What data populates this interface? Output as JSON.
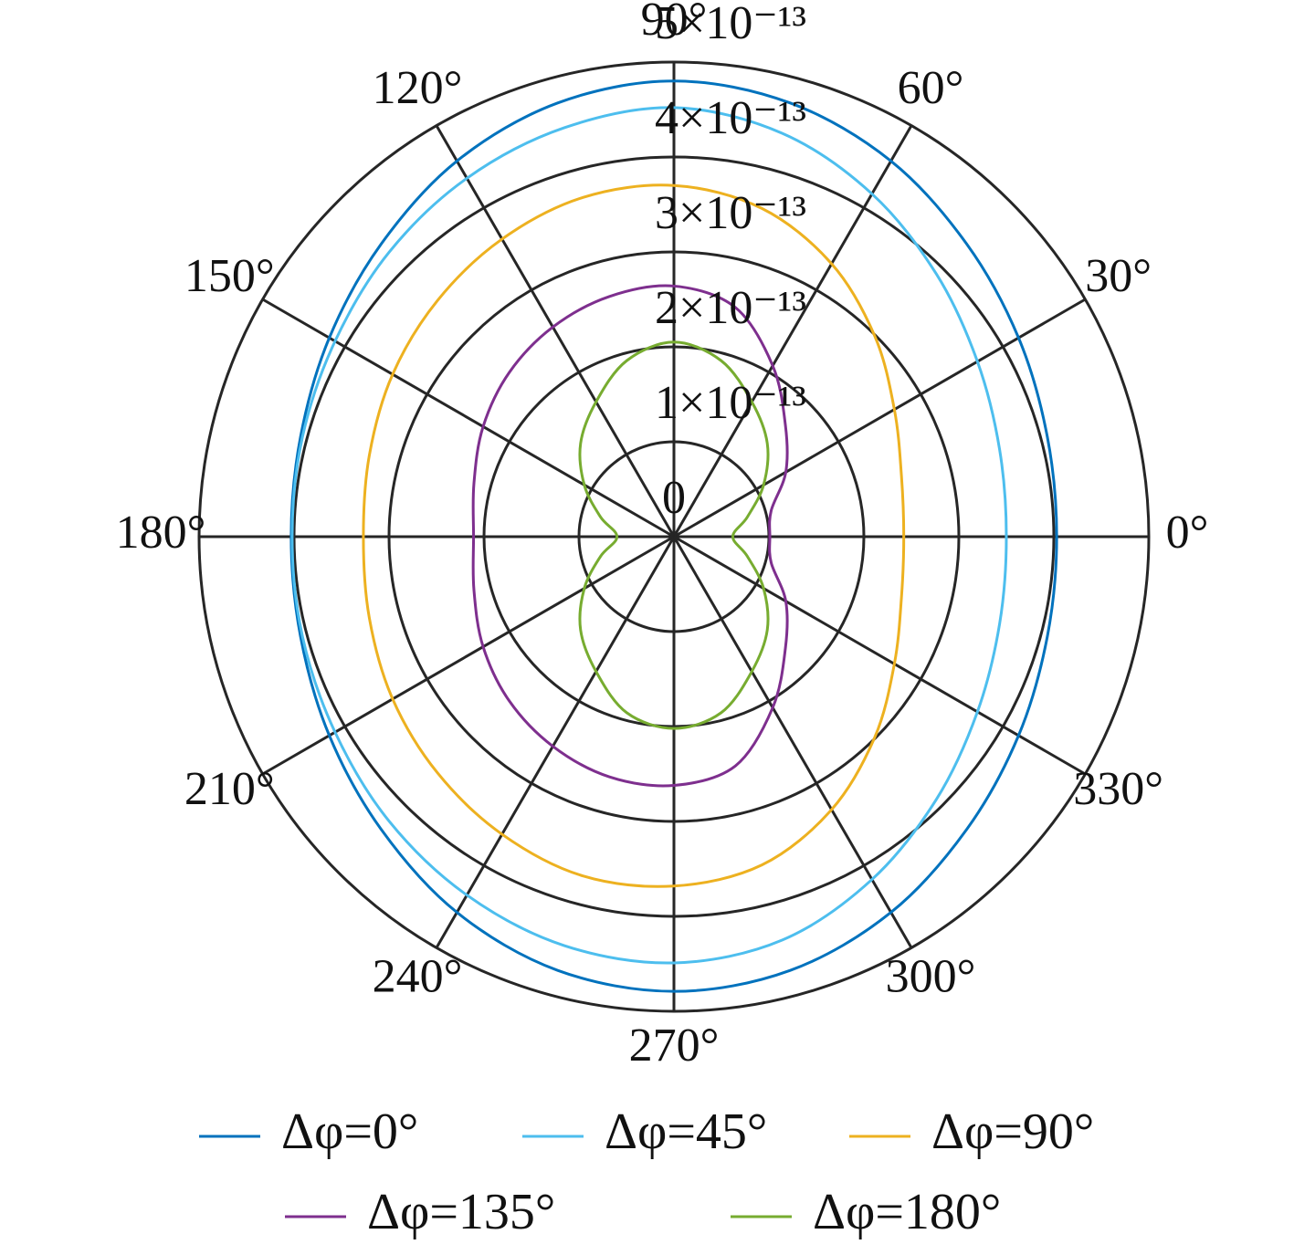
{
  "chart_data": {
    "type": "polar",
    "theta": [
      0,
      15,
      30,
      45,
      60,
      75,
      90,
      105,
      120,
      135,
      150,
      165,
      180,
      195,
      210,
      225,
      240,
      255,
      270,
      285,
      300,
      315,
      330,
      345
    ],
    "rlim": [
      0,
      5e-13
    ],
    "rticks": [
      0,
      {
        "value": 1e-13,
        "label": "1×10⁻¹³"
      },
      {
        "value": 2e-13,
        "label": "2×10⁻¹³"
      },
      {
        "value": 3e-13,
        "label": "3×10⁻¹³"
      },
      {
        "value": 4e-13,
        "label": "4×10⁻¹³"
      },
      {
        "value": 5e-13,
        "label": "5×10⁻¹³"
      }
    ],
    "thetaticks": [
      {
        "value": 0,
        "label": "0°"
      },
      {
        "value": 30,
        "label": "30°"
      },
      {
        "value": 60,
        "label": "60°"
      },
      {
        "value": 90,
        "label": "90°"
      },
      {
        "value": 120,
        "label": "120°"
      },
      {
        "value": 150,
        "label": "150°"
      },
      {
        "value": 180,
        "label": "180°"
      },
      {
        "value": 210,
        "label": "210°"
      },
      {
        "value": 240,
        "label": "240°"
      },
      {
        "value": 270,
        "label": "270°"
      },
      {
        "value": 300,
        "label": "300°"
      },
      {
        "value": 330,
        "label": "330°"
      }
    ],
    "grid": true,
    "legend": "bottom",
    "series": [
      {
        "name": "Δφ=0°",
        "color": "#0072BD",
        "values": [
          4.03e-13,
          4.07e-13,
          4.19e-13,
          4.36e-13,
          4.57e-13,
          4.73e-13,
          4.8e-13,
          4.73e-13,
          4.57e-13,
          4.36e-13,
          4.19e-13,
          4.07e-13,
          4.03e-13,
          4.07e-13,
          4.19e-13,
          4.36e-13,
          4.57e-13,
          4.73e-13,
          4.79e-13,
          4.73e-13,
          4.57e-13,
          4.36e-13,
          4.19e-13,
          4.07e-13
        ]
      },
      {
        "name": "Δφ=45°",
        "color": "#4DBEEE",
        "values": [
          3.5e-13,
          3.55e-13,
          3.69e-13,
          3.91e-13,
          4.17e-13,
          4.4e-13,
          4.52e-13,
          4.46e-13,
          4.36e-13,
          4.24e-13,
          4.12e-13,
          4.05e-13,
          4.02e-13,
          4.05e-13,
          4.12e-13,
          4.24e-13,
          4.36e-13,
          4.46e-13,
          4.49e-13,
          4.4e-13,
          4.17e-13,
          3.91e-13,
          3.69e-13,
          3.55e-13
        ]
      },
      {
        "name": "Δφ=90°",
        "color": "#EDB120",
        "values": [
          2.42e-13,
          2.48e-13,
          2.68e-13,
          2.99e-13,
          3.32e-13,
          3.58e-13,
          3.7e-13,
          3.7e-13,
          3.62e-13,
          3.52e-13,
          3.42e-13,
          3.32e-13,
          3.27e-13,
          3.32e-13,
          3.42e-13,
          3.52e-13,
          3.62e-13,
          3.7e-13,
          3.68e-13,
          3.58e-13,
          3.32e-13,
          2.99e-13,
          2.68e-13,
          2.48e-13
        ]
      },
      {
        "name": "Δφ=135°",
        "color": "#7E2F8E",
        "values": [
          1.01e-13,
          1.06e-13,
          1.36e-13,
          1.66e-13,
          2.08e-13,
          2.5e-13,
          2.64e-13,
          2.62e-13,
          2.55e-13,
          2.45e-13,
          2.32e-13,
          2.18e-13,
          2.11e-13,
          2.18e-13,
          2.32e-13,
          2.45e-13,
          2.55e-13,
          2.62e-13,
          2.62e-13,
          2.5e-13,
          2.08e-13,
          1.66e-13,
          1.36e-13,
          1.06e-13
        ]
      },
      {
        "name": "Δφ=180°",
        "color": "#77AC30",
        "values": [
          6.2e-14,
          8e-14,
          1.09e-13,
          1.39e-13,
          1.64e-13,
          1.92e-13,
          2.05e-13,
          1.92e-13,
          1.64e-13,
          1.39e-13,
          1.09e-13,
          8e-14,
          6e-14,
          8e-14,
          1.09e-13,
          1.39e-13,
          1.64e-13,
          1.92e-13,
          2.02e-13,
          1.92e-13,
          1.64e-13,
          1.39e-13,
          1.09e-13,
          8e-14
        ]
      }
    ]
  }
}
